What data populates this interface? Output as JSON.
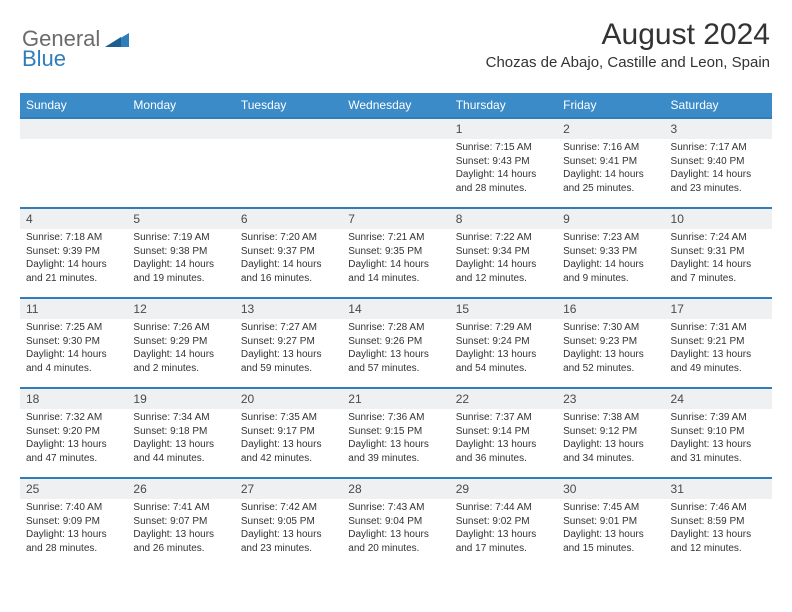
{
  "brand": {
    "general": "General",
    "blue": "Blue"
  },
  "title": {
    "month": "August 2024",
    "location": "Chozas de Abajo, Castille and Leon, Spain"
  },
  "weekdays": [
    "Sunday",
    "Monday",
    "Tuesday",
    "Wednesday",
    "Thursday",
    "Friday",
    "Saturday"
  ],
  "colors": {
    "header_bg": "#3b8bc9",
    "header_rule": "#2f7dbb",
    "daynum_bg": "#eef0f1",
    "text": "#333333",
    "logo_gray": "#6b6b6b",
    "logo_blue": "#2f7dbb"
  },
  "weeks": [
    [
      null,
      null,
      null,
      null,
      {
        "n": "1",
        "sunrise": "7:15 AM",
        "sunset": "9:43 PM",
        "daylight": "14 hours and 28 minutes."
      },
      {
        "n": "2",
        "sunrise": "7:16 AM",
        "sunset": "9:41 PM",
        "daylight": "14 hours and 25 minutes."
      },
      {
        "n": "3",
        "sunrise": "7:17 AM",
        "sunset": "9:40 PM",
        "daylight": "14 hours and 23 minutes."
      }
    ],
    [
      {
        "n": "4",
        "sunrise": "7:18 AM",
        "sunset": "9:39 PM",
        "daylight": "14 hours and 21 minutes."
      },
      {
        "n": "5",
        "sunrise": "7:19 AM",
        "sunset": "9:38 PM",
        "daylight": "14 hours and 19 minutes."
      },
      {
        "n": "6",
        "sunrise": "7:20 AM",
        "sunset": "9:37 PM",
        "daylight": "14 hours and 16 minutes."
      },
      {
        "n": "7",
        "sunrise": "7:21 AM",
        "sunset": "9:35 PM",
        "daylight": "14 hours and 14 minutes."
      },
      {
        "n": "8",
        "sunrise": "7:22 AM",
        "sunset": "9:34 PM",
        "daylight": "14 hours and 12 minutes."
      },
      {
        "n": "9",
        "sunrise": "7:23 AM",
        "sunset": "9:33 PM",
        "daylight": "14 hours and 9 minutes."
      },
      {
        "n": "10",
        "sunrise": "7:24 AM",
        "sunset": "9:31 PM",
        "daylight": "14 hours and 7 minutes."
      }
    ],
    [
      {
        "n": "11",
        "sunrise": "7:25 AM",
        "sunset": "9:30 PM",
        "daylight": "14 hours and 4 minutes."
      },
      {
        "n": "12",
        "sunrise": "7:26 AM",
        "sunset": "9:29 PM",
        "daylight": "14 hours and 2 minutes."
      },
      {
        "n": "13",
        "sunrise": "7:27 AM",
        "sunset": "9:27 PM",
        "daylight": "13 hours and 59 minutes."
      },
      {
        "n": "14",
        "sunrise": "7:28 AM",
        "sunset": "9:26 PM",
        "daylight": "13 hours and 57 minutes."
      },
      {
        "n": "15",
        "sunrise": "7:29 AM",
        "sunset": "9:24 PM",
        "daylight": "13 hours and 54 minutes."
      },
      {
        "n": "16",
        "sunrise": "7:30 AM",
        "sunset": "9:23 PM",
        "daylight": "13 hours and 52 minutes."
      },
      {
        "n": "17",
        "sunrise": "7:31 AM",
        "sunset": "9:21 PM",
        "daylight": "13 hours and 49 minutes."
      }
    ],
    [
      {
        "n": "18",
        "sunrise": "7:32 AM",
        "sunset": "9:20 PM",
        "daylight": "13 hours and 47 minutes."
      },
      {
        "n": "19",
        "sunrise": "7:34 AM",
        "sunset": "9:18 PM",
        "daylight": "13 hours and 44 minutes."
      },
      {
        "n": "20",
        "sunrise": "7:35 AM",
        "sunset": "9:17 PM",
        "daylight": "13 hours and 42 minutes."
      },
      {
        "n": "21",
        "sunrise": "7:36 AM",
        "sunset": "9:15 PM",
        "daylight": "13 hours and 39 minutes."
      },
      {
        "n": "22",
        "sunrise": "7:37 AM",
        "sunset": "9:14 PM",
        "daylight": "13 hours and 36 minutes."
      },
      {
        "n": "23",
        "sunrise": "7:38 AM",
        "sunset": "9:12 PM",
        "daylight": "13 hours and 34 minutes."
      },
      {
        "n": "24",
        "sunrise": "7:39 AM",
        "sunset": "9:10 PM",
        "daylight": "13 hours and 31 minutes."
      }
    ],
    [
      {
        "n": "25",
        "sunrise": "7:40 AM",
        "sunset": "9:09 PM",
        "daylight": "13 hours and 28 minutes."
      },
      {
        "n": "26",
        "sunrise": "7:41 AM",
        "sunset": "9:07 PM",
        "daylight": "13 hours and 26 minutes."
      },
      {
        "n": "27",
        "sunrise": "7:42 AM",
        "sunset": "9:05 PM",
        "daylight": "13 hours and 23 minutes."
      },
      {
        "n": "28",
        "sunrise": "7:43 AM",
        "sunset": "9:04 PM",
        "daylight": "13 hours and 20 minutes."
      },
      {
        "n": "29",
        "sunrise": "7:44 AM",
        "sunset": "9:02 PM",
        "daylight": "13 hours and 17 minutes."
      },
      {
        "n": "30",
        "sunrise": "7:45 AM",
        "sunset": "9:01 PM",
        "daylight": "13 hours and 15 minutes."
      },
      {
        "n": "31",
        "sunrise": "7:46 AM",
        "sunset": "8:59 PM",
        "daylight": "13 hours and 12 minutes."
      }
    ]
  ],
  "labels": {
    "sunrise": "Sunrise:",
    "sunset": "Sunset:",
    "daylight": "Daylight:"
  }
}
